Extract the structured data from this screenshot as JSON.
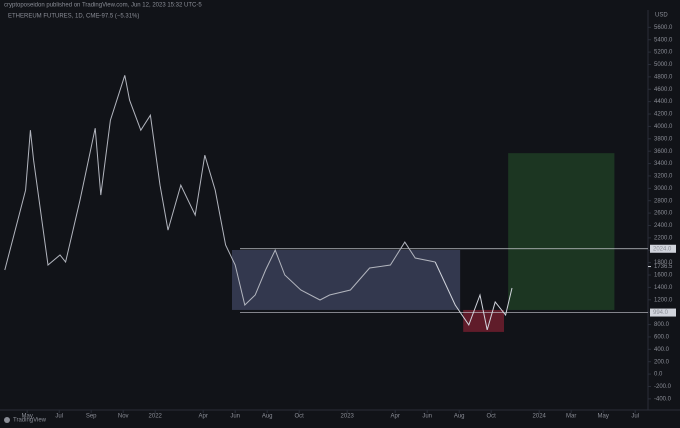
{
  "header": "cryptoposeidon published on TradingView.com, Jun 12, 2023 15:32 UTC-5",
  "footer": "TradingView",
  "chart_data": {
    "type": "line",
    "title": "ETHEREUM FUTURES, 1D, CME",
    "subtitle": "−97.5 (−5.31%)",
    "y_unit": "USD",
    "series": [
      {
        "color": "#b2b5be",
        "x": [
          2.6,
          3.25,
          3.9,
          4.2,
          4.4,
          5.3,
          6.05,
          6.4,
          7.3,
          8.25,
          8.6,
          9.2,
          10.1,
          10.4,
          11.1,
          11.7,
          12.3,
          12.8,
          13.6,
          14.5,
          15.1,
          15.75,
          16.4,
          17,
          17.6,
          18.25,
          18.9,
          19.5,
          20.1,
          21.1,
          22.3,
          22.9,
          24.2,
          25.4,
          26.7,
          27.6,
          28.25,
          29.5
        ],
        "values": [
          1681,
          2326,
          2971,
          3939,
          3455,
          1761,
          1923,
          1810,
          2810,
          3971,
          2890,
          4100,
          4826,
          4423,
          3939,
          4181,
          3052,
          2326,
          3052,
          2568,
          3535,
          2971,
          2084,
          1761,
          1116,
          1277,
          1681,
          2003,
          1600,
          1358,
          1197,
          1277,
          1358,
          1713,
          1761,
          2132,
          1874,
          1810
        ]
      }
    ],
    "projection": {
      "color": "#d1d4dc",
      "x": [
        29.5,
        30.75,
        31.6,
        32.3,
        32.75,
        33.25,
        33.9,
        34.3
      ],
      "values": [
        1810,
        1116,
        794,
        1277,
        713,
        1165,
        955,
        1390
      ]
    },
    "zones": [
      {
        "x": [
          16.8,
          31.06
        ],
        "y": [
          1036,
          2004
        ],
        "color": "#3a3f58"
      },
      {
        "x": [
          31.25,
          33.8
        ],
        "y": [
          681,
          1036
        ],
        "color": "#6e1e2e"
      },
      {
        "x": [
          34.06,
          40.7
        ],
        "y": [
          1036,
          3568
        ],
        "color": "#1f3d24"
      }
    ],
    "levels": [
      {
        "value": 2024,
        "label": "2024.0"
      },
      {
        "value": 994,
        "label": "994.0"
      }
    ],
    "last_price": {
      "value": 1736.5,
      "label": "1736.5"
    },
    "xlim": [
      2.3,
      42.8
    ],
    "ylim": [
      -580,
      5880
    ],
    "xticks": [
      {
        "value": 4,
        "label": "May"
      },
      {
        "value": 6,
        "label": "Jul"
      },
      {
        "value": 8,
        "label": "Sep"
      },
      {
        "value": 10,
        "label": "Nov"
      },
      {
        "value": 12,
        "label": "2022"
      },
      {
        "value": 15,
        "label": "Apr"
      },
      {
        "value": 17,
        "label": "Jun"
      },
      {
        "value": 19,
        "label": "Aug"
      },
      {
        "value": 21,
        "label": "Oct"
      },
      {
        "value": 24,
        "label": "2023"
      },
      {
        "value": 27,
        "label": "Apr"
      },
      {
        "value": 29,
        "label": "Jun"
      },
      {
        "value": 31,
        "label": "Aug"
      },
      {
        "value": 33,
        "label": "Oct"
      },
      {
        "value": 36,
        "label": "2024"
      },
      {
        "value": 38,
        "label": "Mar"
      },
      {
        "value": 40,
        "label": "May"
      },
      {
        "value": 42,
        "label": "Jul"
      }
    ],
    "yticks": [
      {
        "value": -400,
        "label": "-400.0"
      },
      {
        "value": -200,
        "label": "-200.0"
      },
      {
        "value": 0,
        "label": "0.0"
      },
      {
        "value": 200,
        "label": "200.0"
      },
      {
        "value": 400,
        "label": "400.0"
      },
      {
        "value": 600,
        "label": "600.0"
      },
      {
        "value": 800,
        "label": "800.0"
      },
      {
        "value": 1000,
        "label": "1000.0"
      },
      {
        "value": 1200,
        "label": "1200.0"
      },
      {
        "value": 1400,
        "label": "1400.0"
      },
      {
        "value": 1600,
        "label": "1600.0"
      },
      {
        "value": 1800,
        "label": "1800.0"
      },
      {
        "value": 2000,
        "label": "2000.0"
      },
      {
        "value": 2200,
        "label": "2200.0"
      },
      {
        "value": 2400,
        "label": "2400.0"
      },
      {
        "value": 2600,
        "label": "2600.0"
      },
      {
        "value": 2800,
        "label": "2800.0"
      },
      {
        "value": 3000,
        "label": "3000.0"
      },
      {
        "value": 3200,
        "label": "3200.0"
      },
      {
        "value": 3400,
        "label": "3400.0"
      },
      {
        "value": 3600,
        "label": "3600.0"
      },
      {
        "value": 3800,
        "label": "3800.0"
      },
      {
        "value": 4000,
        "label": "4000.0"
      },
      {
        "value": 4200,
        "label": "4200.0"
      },
      {
        "value": 4400,
        "label": "4400.0"
      },
      {
        "value": 4600,
        "label": "4600.0"
      },
      {
        "value": 4800,
        "label": "4800.0"
      },
      {
        "value": 5000,
        "label": "5000.0"
      },
      {
        "value": 5200,
        "label": "5200.0"
      },
      {
        "value": 5400,
        "label": "5400.0"
      },
      {
        "value": 5600,
        "label": "5600.0"
      }
    ]
  }
}
